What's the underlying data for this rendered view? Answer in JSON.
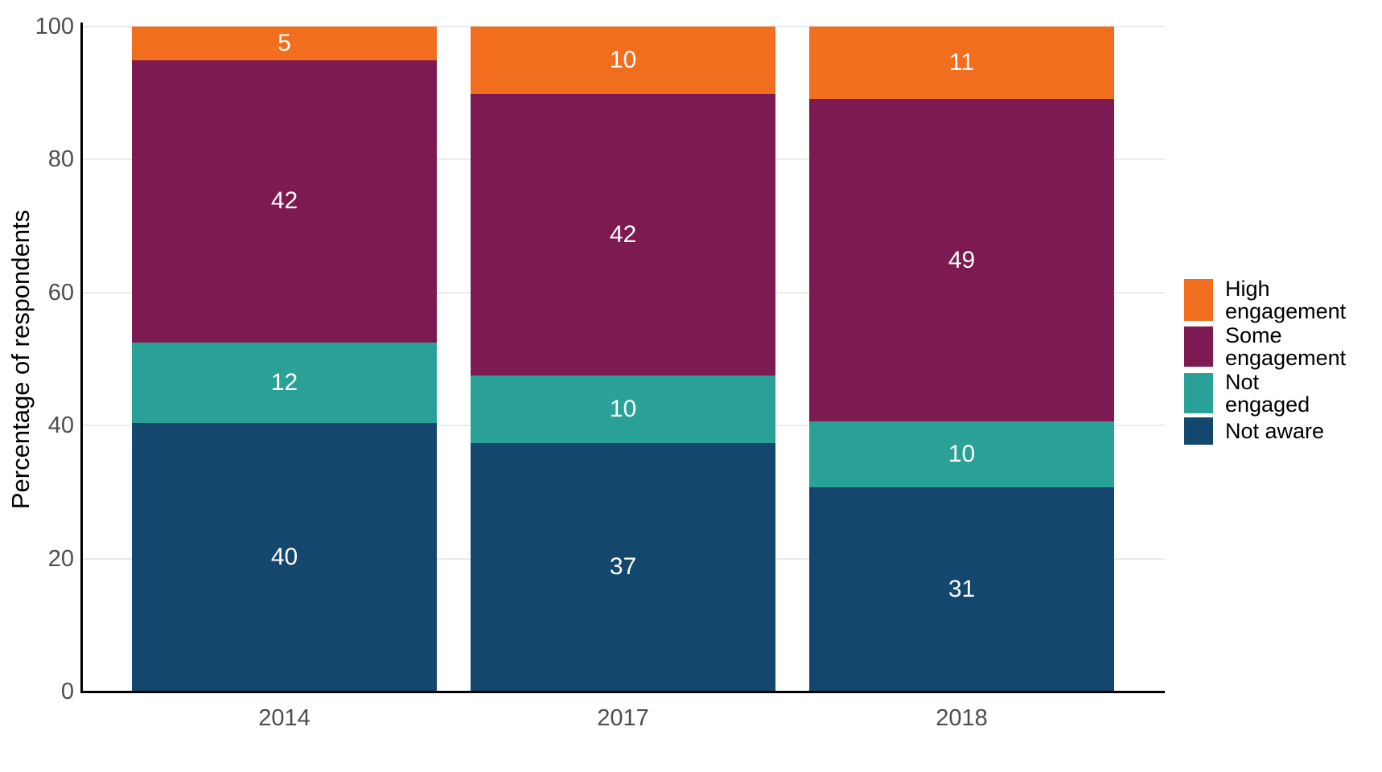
{
  "chart_data": {
    "type": "bar",
    "subtype": "stacked-percent",
    "title": "",
    "xlabel": "",
    "ylabel": "Percentage of respondents",
    "categories": [
      "2014",
      "2017",
      "2018"
    ],
    "series": [
      {
        "name": "Not aware",
        "color": "#14476D",
        "values": [
          40,
          37,
          31
        ]
      },
      {
        "name": "Not engaged",
        "color": "#2AA197",
        "values": [
          12,
          10,
          10
        ]
      },
      {
        "name": "Some engagement",
        "color": "#7D1A51",
        "values": [
          42,
          42,
          49
        ]
      },
      {
        "name": "High engagement",
        "color": "#F26E1F",
        "values": [
          5,
          10,
          11
        ]
      }
    ],
    "yticks": [
      0,
      20,
      40,
      60,
      80,
      100
    ],
    "ylim": [
      0,
      100
    ],
    "grid": true,
    "bar_label_color": "#ffffff",
    "axis_line_color": "#000000",
    "gridline_color": "#ebebeb",
    "tick_label_color": "#4d4d4d",
    "legend_position": "right",
    "legend": [
      {
        "label": "High\nengagement",
        "color": "#F26E1F"
      },
      {
        "label": "Some\nengagement",
        "color": "#7D1A51"
      },
      {
        "label": "Not\nengaged",
        "color": "#2AA197"
      },
      {
        "label": "Not aware",
        "color": "#14476D"
      }
    ]
  }
}
